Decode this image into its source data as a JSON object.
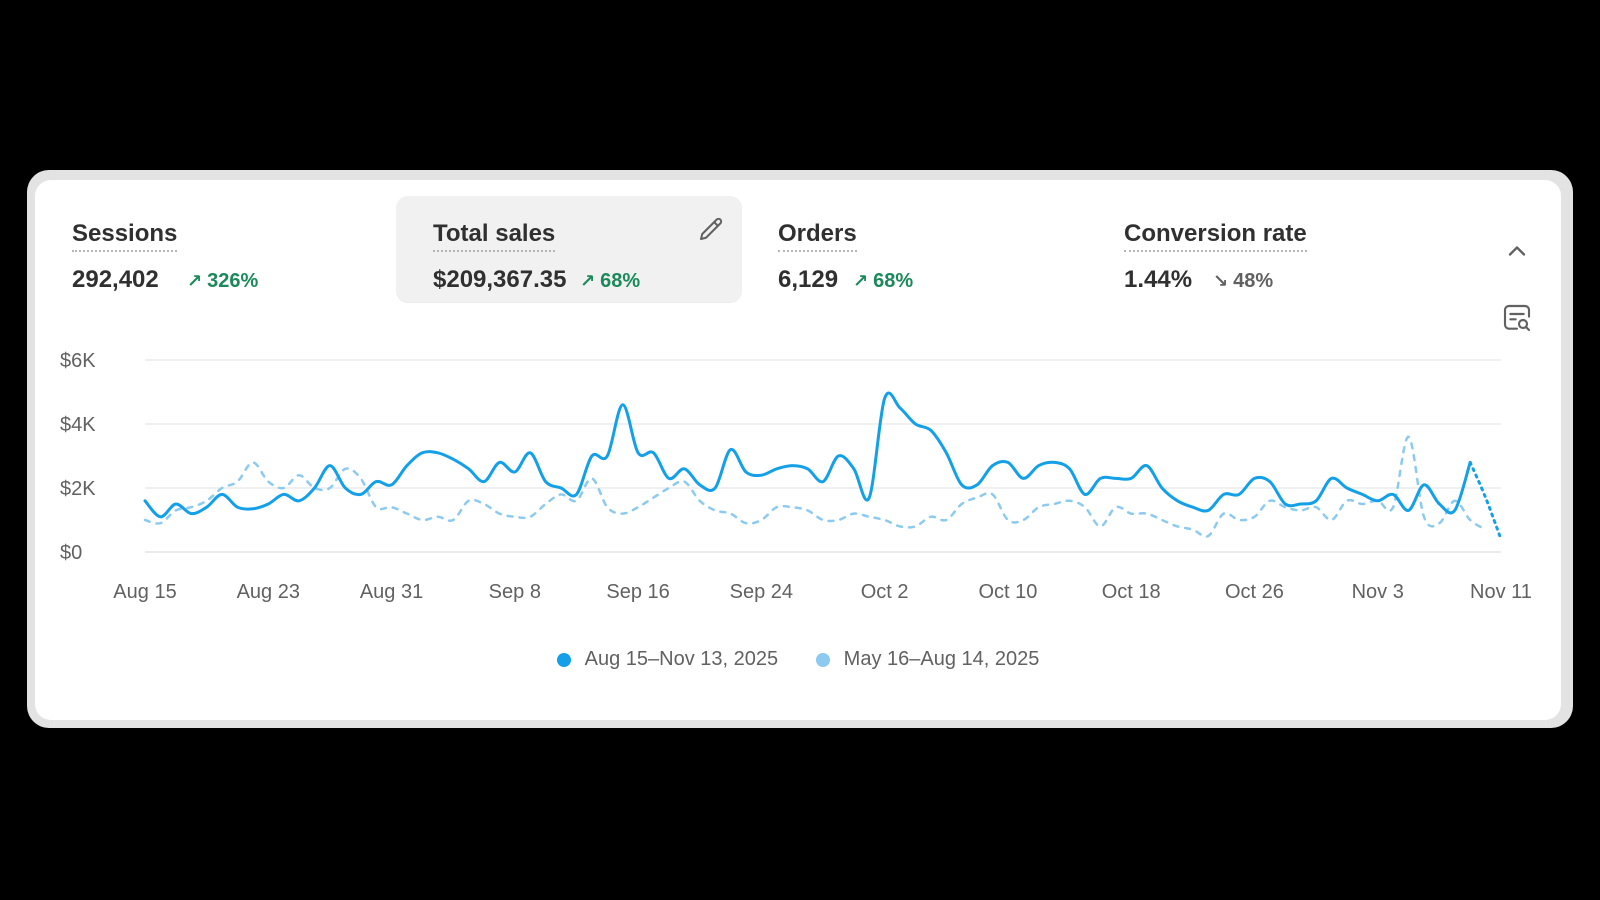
{
  "metrics": [
    {
      "label": "Sessions",
      "value": "292,402",
      "change": "326%",
      "direction": "up",
      "selected": false
    },
    {
      "label": "Total sales",
      "value": "$209,367.35",
      "change": "68%",
      "direction": "up",
      "selected": true
    },
    {
      "label": "Orders",
      "value": "6,129",
      "change": "68%",
      "direction": "up",
      "selected": false
    },
    {
      "label": "Conversion rate",
      "value": "1.44%",
      "change": "48%",
      "direction": "down",
      "selected": false
    }
  ],
  "icons": {
    "edit": "pencil-icon",
    "collapse": "chevron-up-icon",
    "chart_search": "chart-search-icon"
  },
  "colors": {
    "current": "#13a0e8",
    "previous": "#8ccaf0",
    "up": "#1b8a5a",
    "down": "#616161"
  },
  "legend": [
    {
      "label": "Aug 15–Nov 13, 2025",
      "color": "#13a0e8"
    },
    {
      "label": "May 16–Aug 14, 2025",
      "color": "#8ccaf0"
    }
  ],
  "chart_data": {
    "type": "line",
    "ylim": [
      0,
      6000
    ],
    "y_ticks": [
      0,
      2000,
      4000,
      6000
    ],
    "y_tick_labels": [
      "$0",
      "$2K",
      "$4K",
      "$6K"
    ],
    "x_tick_labels": [
      "Aug 15",
      "Aug 23",
      "Aug 31",
      "Sep 8",
      "Sep 16",
      "Sep 24",
      "Oct 2",
      "Oct 10",
      "Oct 18",
      "Oct 26",
      "Nov 3",
      "Nov 11"
    ],
    "x_tick_days": [
      0,
      8,
      16,
      24,
      32,
      40,
      48,
      56,
      64,
      72,
      80,
      88
    ],
    "grid": true,
    "series": [
      {
        "name": "Aug 15–Nov 13, 2025",
        "style": "solid",
        "values": [
          1600,
          1100,
          1500,
          1200,
          1400,
          1800,
          1400,
          1350,
          1500,
          1800,
          1600,
          2000,
          2700,
          2000,
          1800,
          2200,
          2100,
          2700,
          3100,
          3100,
          2900,
          2600,
          2200,
          2800,
          2500,
          3100,
          2200,
          2000,
          1800,
          3000,
          3000,
          4600,
          3100,
          3100,
          2300,
          2600,
          2100,
          2000,
          3200,
          2500,
          2400,
          2600,
          2700,
          2600,
          2200,
          3000,
          2600,
          1700,
          4800,
          4500,
          4000,
          3800,
          3100,
          2100,
          2100,
          2700,
          2800,
          2300,
          2700,
          2800,
          2600,
          1800,
          2300,
          2300,
          2300,
          2700,
          2000,
          1600,
          1400,
          1300,
          1800,
          1800,
          2300,
          2200,
          1500,
          1500,
          1600,
          2300,
          2000,
          1800,
          1600,
          1800,
          1300,
          2100,
          1500,
          1300,
          2800,
          1700,
          400
        ],
        "partial_from_index": 86
      },
      {
        "name": "May 16–Aug 14, 2025",
        "style": "dashed",
        "values": [
          1000,
          900,
          1300,
          1400,
          1600,
          2000,
          2200,
          2800,
          2200,
          2000,
          2400,
          2000,
          2000,
          2600,
          2300,
          1400,
          1400,
          1200,
          1000,
          1100,
          1000,
          1600,
          1500,
          1200,
          1100,
          1100,
          1500,
          1800,
          1600,
          2300,
          1400,
          1200,
          1400,
          1700,
          2000,
          2200,
          1600,
          1300,
          1200,
          900,
          1000,
          1400,
          1400,
          1300,
          1000,
          1000,
          1200,
          1100,
          1000,
          800,
          800,
          1100,
          1000,
          1500,
          1700,
          1800,
          1000,
          1000,
          1400,
          1500,
          1600,
          1400,
          800,
          1400,
          1200,
          1200,
          1000,
          800,
          700,
          500,
          1200,
          1000,
          1100,
          1600,
          1400,
          1300,
          1400,
          1000,
          1600,
          1500,
          1600,
          1400,
          3600,
          1100,
          900,
          1600,
          1000,
          700
        ]
      }
    ]
  }
}
